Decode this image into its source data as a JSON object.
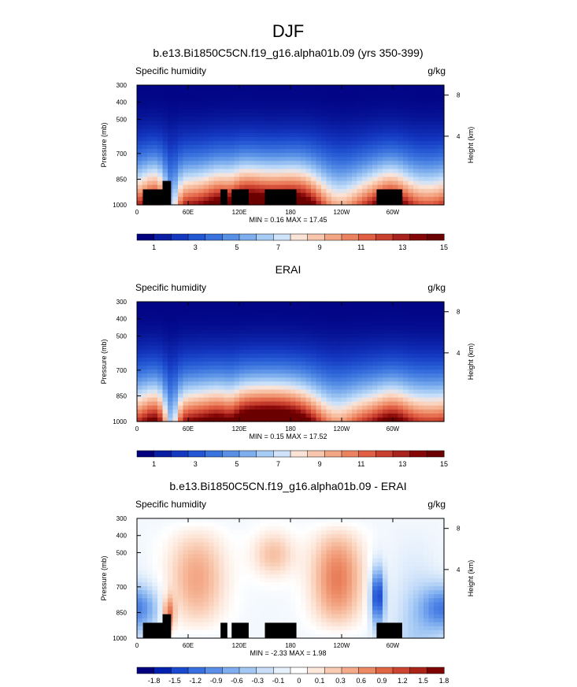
{
  "figure": {
    "title": "DJF"
  },
  "colors": {
    "abs_scale": [
      "#00007f",
      "#0a1ea3",
      "#1438c0",
      "#2356d2",
      "#3a72de",
      "#5890e6",
      "#7eaeee",
      "#a6cbf4",
      "#cfe3fa",
      "#fbe3d6",
      "#f8c6ac",
      "#f3a684",
      "#ec8360",
      "#e15f43",
      "#c9402e",
      "#a8231e",
      "#850606",
      "#6b0000"
    ],
    "diff_scale": [
      "#00007f",
      "#0020b0",
      "#1a4ad0",
      "#3a6fe0",
      "#5b8fe8",
      "#7fadef",
      "#a3c8f4",
      "#c8def9",
      "#e7f1fc",
      "#ffffff",
      "#fde8dc",
      "#f9cbb2",
      "#f4ab8a",
      "#ec8a65",
      "#e06545",
      "#cc4530",
      "#aa2418",
      "#7f0000"
    ],
    "land": "#000000"
  },
  "chart_data": [
    {
      "type": "heatmap",
      "title": "b.e13.Bi1850C5CN.f19_g16.alpha01b.09 (yrs 350-399)",
      "left_label": "Specific humidity",
      "right_label": "g/kg",
      "ylabel": "Pressure (mb)",
      "y2label": "Height (km)",
      "x_ticks": [
        "0",
        "60E",
        "120E",
        "180",
        "120W",
        "60W"
      ],
      "x_tick_values": [
        0,
        60,
        120,
        180,
        240,
        300
      ],
      "xlim": [
        0,
        360
      ],
      "y_ticks": [
        "300",
        "400",
        "500",
        "700",
        "850",
        "1000"
      ],
      "y_tick_values": [
        300,
        400,
        500,
        700,
        850,
        1000
      ],
      "ylim": [
        300,
        1000
      ],
      "y2_ticks": [
        "8",
        "4"
      ],
      "y2_tick_values": [
        8,
        4
      ],
      "stats": "MIN =   0.16  MAX =  17.45",
      "min": 0.16,
      "max": 17.45,
      "colorbar": {
        "labels": [
          "1",
          "3",
          "5",
          "7",
          "9",
          "11",
          "13",
          "15"
        ],
        "levels": [
          1,
          3,
          5,
          7,
          9,
          11,
          13,
          15
        ],
        "nboxes": 18,
        "scale": "abs_scale"
      }
    },
    {
      "type": "heatmap",
      "title": "ERAI",
      "left_label": "Specific humidity",
      "right_label": "g/kg",
      "ylabel": "Pressure (mb)",
      "y2label": "Height (km)",
      "x_ticks": [
        "0",
        "60E",
        "120E",
        "180",
        "120W",
        "60W"
      ],
      "x_tick_values": [
        0,
        60,
        120,
        180,
        240,
        300
      ],
      "xlim": [
        0,
        360
      ],
      "y_ticks": [
        "300",
        "400",
        "500",
        "700",
        "850",
        "1000"
      ],
      "y_tick_values": [
        300,
        400,
        500,
        700,
        850,
        1000
      ],
      "ylim": [
        300,
        1000
      ],
      "y2_ticks": [
        "8",
        "4"
      ],
      "y2_tick_values": [
        8,
        4
      ],
      "stats": "MIN =   0.15  MAX =  17.52",
      "min": 0.15,
      "max": 17.52,
      "colorbar": {
        "labels": [
          "1",
          "3",
          "5",
          "7",
          "9",
          "11",
          "13",
          "15"
        ],
        "levels": [
          1,
          3,
          5,
          7,
          9,
          11,
          13,
          15
        ],
        "nboxes": 18,
        "scale": "abs_scale"
      }
    },
    {
      "type": "heatmap",
      "title": "b.e13.Bi1850C5CN.f19_g16.alpha01b.09 - ERAI",
      "left_label": "Specific humidity",
      "right_label": "g/kg",
      "ylabel": "Pressure (mb)",
      "y2label": "Height (km)",
      "x_ticks": [
        "0",
        "60E",
        "120E",
        "180",
        "120W",
        "60W"
      ],
      "x_tick_values": [
        0,
        60,
        120,
        180,
        240,
        300
      ],
      "xlim": [
        0,
        360
      ],
      "y_ticks": [
        "300",
        "400",
        "500",
        "700",
        "850",
        "1000"
      ],
      "y_tick_values": [
        300,
        400,
        500,
        700,
        850,
        1000
      ],
      "ylim": [
        300,
        1000
      ],
      "y2_ticks": [
        "8",
        "4"
      ],
      "y2_tick_values": [
        8,
        4
      ],
      "stats": "MIN =  -2.33  MAX =   1.98",
      "min": -2.33,
      "max": 1.98,
      "colorbar": {
        "labels": [
          "-1.8",
          "-1.5",
          "-1.2",
          "-0.9",
          "-0.6",
          "-0.3",
          "-0.1",
          "0",
          "0.1",
          "0.3",
          "0.6",
          "0.9",
          "1.2",
          "1.5",
          "1.8"
        ],
        "levels": [
          -1.8,
          -1.5,
          -1.2,
          -0.9,
          -0.6,
          -0.3,
          -0.1,
          0,
          0.1,
          0.3,
          0.6,
          0.9,
          1.2,
          1.5,
          1.8
        ],
        "nboxes": 18,
        "scale": "diff_scale"
      }
    }
  ]
}
